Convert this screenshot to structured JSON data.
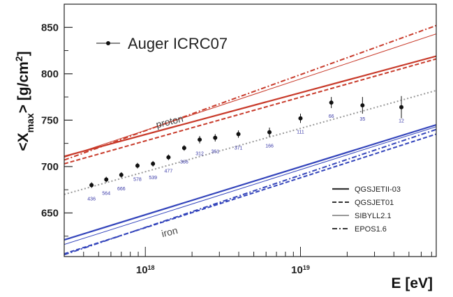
{
  "chart_data": {
    "type": "line",
    "title": "",
    "xlabel": "E [eV]",
    "ylabel": "<X_max> [g/cm^2]",
    "x_scale": "log",
    "xlim": [
      3e+17,
      7.5e+19
    ],
    "ylim": [
      603,
      875
    ],
    "x_ticks": [
      {
        "value": 1e+18,
        "base": "10",
        "exp": "18"
      },
      {
        "value": 1e+19,
        "base": "10",
        "exp": "19"
      }
    ],
    "y_ticks": [
      650,
      700,
      750,
      800,
      850
    ],
    "grid": false,
    "legend_position": "right",
    "auger": {
      "label": "Auger ICRC07",
      "points": [
        {
          "x": 4.5e+17,
          "y": 680,
          "err": 3,
          "n": "436"
        },
        {
          "x": 5.6e+17,
          "y": 686,
          "err": 3,
          "n": "564"
        },
        {
          "x": 7e+17,
          "y": 691,
          "err": 3,
          "n": "666"
        },
        {
          "x": 8.9e+17,
          "y": 701,
          "err": 3,
          "n": "578"
        },
        {
          "x": 1.12e+18,
          "y": 703,
          "err": 3,
          "n": "539"
        },
        {
          "x": 1.41e+18,
          "y": 710,
          "err": 3,
          "n": "477"
        },
        {
          "x": 1.78e+18,
          "y": 720,
          "err": 3,
          "n": "366"
        },
        {
          "x": 2.24e+18,
          "y": 729,
          "err": 4,
          "n": "312"
        },
        {
          "x": 2.82e+18,
          "y": 731,
          "err": 4,
          "n": "361"
        },
        {
          "x": 3.98e+18,
          "y": 735,
          "err": 4,
          "n": "371"
        },
        {
          "x": 6.31e+18,
          "y": 737,
          "err": 5,
          "n": "166"
        },
        {
          "x": 1e+19,
          "y": 752,
          "err": 5,
          "n": "111"
        },
        {
          "x": 1.58e+19,
          "y": 769,
          "err": 6,
          "n": "66"
        },
        {
          "x": 2.51e+19,
          "y": 766,
          "err": 9,
          "n": "35"
        },
        {
          "x": 4.47e+19,
          "y": 764,
          "err": 12,
          "n": "12"
        }
      ]
    },
    "series": [
      {
        "name": "QGSJETII-03",
        "primary": "proton",
        "style": "solid",
        "x": [
          3e+17,
          7.5e+19
        ],
        "y": [
          711,
          819
        ]
      },
      {
        "name": "QGSJET01",
        "primary": "proton",
        "style": "dashed",
        "x": [
          3e+17,
          7.5e+19
        ],
        "y": [
          703,
          816
        ]
      },
      {
        "name": "SIBYLL2.1",
        "primary": "proton",
        "style": "thin",
        "x": [
          3e+17,
          7.5e+19
        ],
        "y": [
          710,
          843
        ]
      },
      {
        "name": "EPOS1.6",
        "primary": "proton",
        "style": "dashdot",
        "x": [
          3e+17,
          7.5e+19
        ],
        "y": [
          707,
          852
        ]
      },
      {
        "name": "QGSJETII-03",
        "primary": "iron",
        "style": "solid",
        "x": [
          3e+17,
          7.5e+19
        ],
        "y": [
          621,
          745
        ]
      },
      {
        "name": "QGSJET01",
        "primary": "iron",
        "style": "dashed",
        "x": [
          3e+17,
          7.5e+19
        ],
        "y": [
          606,
          735
        ]
      },
      {
        "name": "SIBYLL2.1",
        "primary": "iron",
        "style": "thin",
        "x": [
          3e+17,
          7.5e+19
        ],
        "y": [
          616,
          743
        ]
      },
      {
        "name": "EPOS1.6",
        "primary": "iron",
        "style": "dashdot",
        "x": [
          3e+17,
          7.5e+19
        ],
        "y": [
          605,
          740
        ]
      }
    ],
    "auger_trend": {
      "x": [
        3e+17,
        7.5e+19
      ],
      "y": [
        670,
        782
      ]
    },
    "annotations": [
      {
        "text": "proton",
        "x": 1.45e+18,
        "y": 745,
        "angle": -14
      },
      {
        "text": "iron",
        "x": 1.45e+18,
        "y": 626,
        "angle": -14
      }
    ],
    "legend": [
      {
        "label": "QGSJETII-03",
        "style": "solid"
      },
      {
        "label": "QGSJET01",
        "style": "dashed"
      },
      {
        "label": "SIBYLL2.1",
        "style": "thin"
      },
      {
        "label": "EPOS1.6",
        "style": "dashdot"
      }
    ],
    "colors": {
      "proton": "#c83a2a",
      "iron": "#3344bb",
      "data": "#111111",
      "trend": "#999999",
      "count_labels": "#3a3aa8"
    }
  }
}
